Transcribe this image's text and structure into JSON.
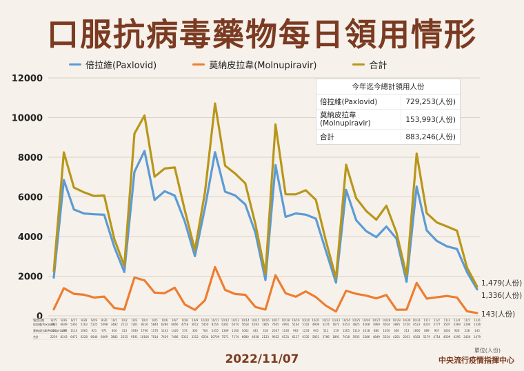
{
  "title": "口服抗病毒藥物每日領用情形",
  "date": "2022/11/07",
  "unit_note": "單位(人份)",
  "source": "中央流行疫情指揮中心",
  "colors": {
    "paxlovid": "#5b9bd5",
    "molnupiravir": "#ed7d31",
    "total": "#b8961a",
    "title": "#7a3b22"
  },
  "summary_table": {
    "header": "今年迄今總計領用人份",
    "rows": [
      {
        "label": "倍拉維(Paxlovid)",
        "value": "729,253(人份)"
      },
      {
        "label": "莫納皮拉韋(Molnupiravir)",
        "value": "153,993(人份)"
      },
      {
        "label": "合計",
        "value": "883,246(人份)"
      }
    ]
  },
  "end_labels": {
    "total": "1,479(人份)",
    "paxlovid": "1,336(人份)",
    "molnupiravir": "143(人份)"
  },
  "chart_data": {
    "type": "line",
    "ylim": [
      0,
      12000
    ],
    "yticks": [
      0,
      2000,
      4000,
      6000,
      8000,
      10000,
      12000
    ],
    "grid": true,
    "legend_position": "top",
    "categories": [
      "9/25",
      "9/26",
      "9/27",
      "9/28",
      "9/29",
      "9/30",
      "10/1",
      "10/2",
      "10/3",
      "10/4",
      "10/5",
      "10/6",
      "10/7",
      "10/8",
      "10/9",
      "10/10",
      "10/11",
      "10/12",
      "10/13",
      "10/14",
      "10/15",
      "10/16",
      "10/17",
      "10/18",
      "10/19",
      "10/20",
      "10/21",
      "10/22",
      "10/23",
      "10/24",
      "10/25",
      "10/26",
      "10/27",
      "10/28",
      "10/29",
      "10/30",
      "10/31",
      "11/1",
      "11/2",
      "11/3",
      "11/4",
      "11/5",
      "11/6"
    ],
    "row_labels": [
      "領用日期",
      "倍拉維(Paxlovid)",
      "莫納皮拉韋(Molnupiravir)",
      "合計"
    ],
    "series": [
      {
        "name": "倍拉維(Paxlovid)",
        "key": "paxlovid",
        "values": [
          1932,
          6849,
          5362,
          5163,
          5125,
          5098,
          3482,
          2212,
          7261,
          8316,
          5844,
          6286,
          6066,
          4758,
          3012,
          5450,
          8254,
          6262,
          6074,
          5618,
          4193,
          1805,
          7605,
          4991,
          5164,
          5102,
          4906,
          3274,
          1672,
          6353,
          4825,
          4268,
          3969,
          4504,
          3895,
          1720,
          6523,
          4310,
          3777,
          3507,
          3369,
          2198,
          1336
        ]
      },
      {
        "name": "莫納皮拉韋(Molnupiravir)",
        "key": "molnupiravir",
        "values": [
          327,
          1394,
          1110,
          1065,
          921,
          971,
          400,
          313,
          1930,
          1790,
          1170,
          1143,
          1420,
          574,
          300,
          784,
          2455,
          1309,
          1100,
          1062,
          445,
          318,
          2047,
          1140,
          963,
          1233,
          945,
          512,
          219,
          1265,
          1110,
          1018,
          880,
          1050,
          306,
          313,
          1660,
          869,
          937,
          1002,
          926,
          228,
          143
        ]
      },
      {
        "name": "合計",
        "key": "total",
        "values": [
          2259,
          8243,
          6472,
          6228,
          6046,
          6069,
          3882,
          2525,
          9191,
          10106,
          7014,
          7429,
          7486,
          5332,
          3312,
          6234,
          10709,
          7571,
          7174,
          6680,
          4638,
          2123,
          9652,
          6131,
          6127,
          6335,
          5851,
          3786,
          1891,
          7618,
          5935,
          5286,
          4849,
          5554,
          4201,
          2033,
          8183,
          5179,
          4714,
          4509,
          4295,
          2426,
          1479
        ]
      }
    ]
  }
}
